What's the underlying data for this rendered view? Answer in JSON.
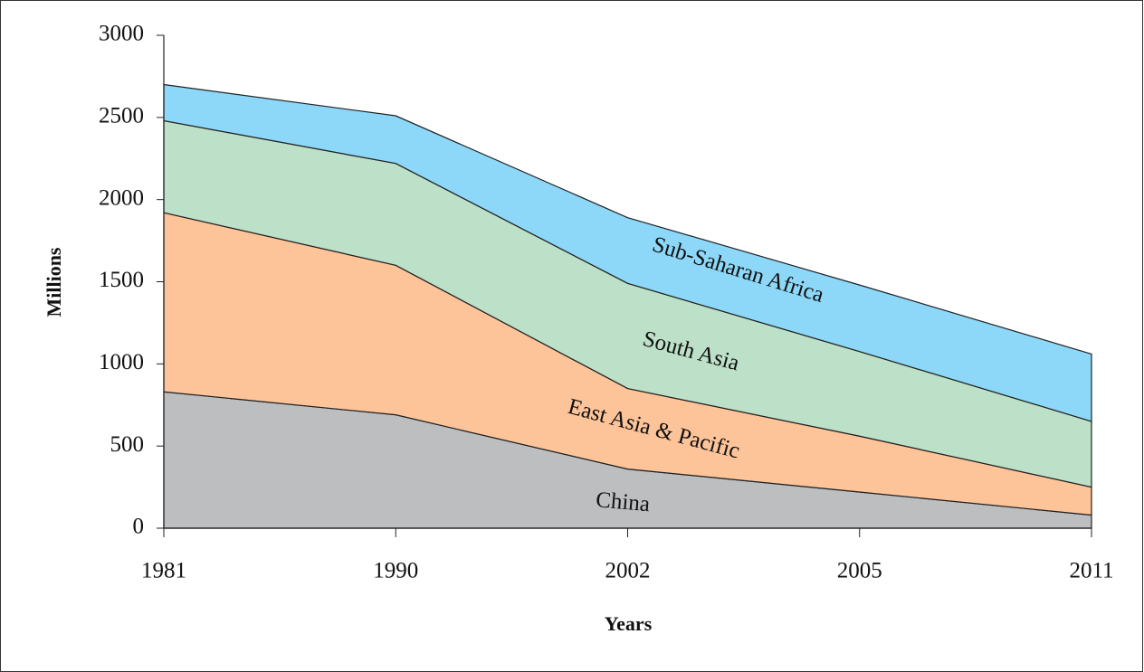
{
  "chart_data": {
    "type": "stacked-area",
    "x_label": "Years",
    "y_label": "Millions",
    "categories": [
      "1981",
      "1990",
      "2002",
      "2005",
      "2011"
    ],
    "series": [
      {
        "name": "China",
        "color": "#bcbec0",
        "values": [
          830,
          690,
          360,
          220,
          80
        ]
      },
      {
        "name": "East Asia & Pacific",
        "color": "#fdc49a",
        "values": [
          1090,
          910,
          490,
          340,
          170
        ]
      },
      {
        "name": "South Asia",
        "color": "#bce0c8",
        "values": [
          560,
          620,
          640,
          515,
          400
        ]
      },
      {
        "name": "Sub-Saharan Africa",
        "color": "#8dd8f8",
        "values": [
          220,
          290,
          400,
          405,
          410
        ]
      }
    ],
    "ylim": [
      0,
      3000
    ],
    "yticks": [
      0,
      500,
      1000,
      1500,
      2000,
      2500,
      3000
    ],
    "grid": false
  }
}
